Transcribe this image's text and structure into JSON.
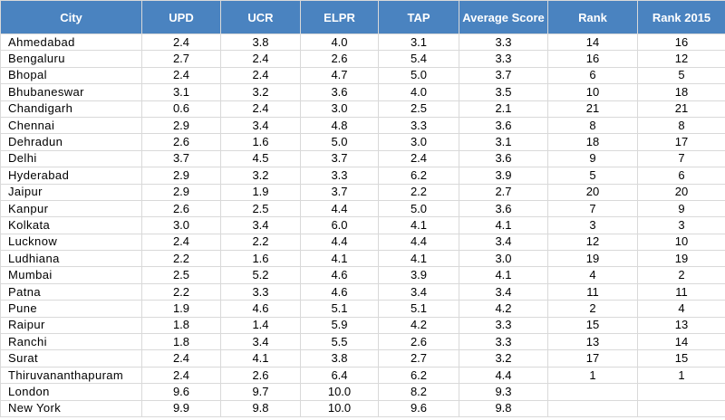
{
  "table": {
    "headers": [
      "City",
      "UPD",
      "UCR",
      "ELPR",
      "TAP",
      "Average Score",
      "Rank",
      "Rank 2015"
    ],
    "rows": [
      [
        "Ahmedabad",
        "2.4",
        "3.8",
        "4.0",
        "3.1",
        "3.3",
        "14",
        "16"
      ],
      [
        "Bengaluru",
        "2.7",
        "2.4",
        "2.6",
        "5.4",
        "3.3",
        "16",
        "12"
      ],
      [
        "Bhopal",
        "2.4",
        "2.4",
        "4.7",
        "5.0",
        "3.7",
        "6",
        "5"
      ],
      [
        "Bhubaneswar",
        "3.1",
        "3.2",
        "3.6",
        "4.0",
        "3.5",
        "10",
        "18"
      ],
      [
        "Chandigarh",
        "0.6",
        "2.4",
        "3.0",
        "2.5",
        "2.1",
        "21",
        "21"
      ],
      [
        "Chennai",
        "2.9",
        "3.4",
        "4.8",
        "3.3",
        "3.6",
        "8",
        "8"
      ],
      [
        "Dehradun",
        "2.6",
        "1.6",
        "5.0",
        "3.0",
        "3.1",
        "18",
        "17"
      ],
      [
        "Delhi",
        "3.7",
        "4.5",
        "3.7",
        "2.4",
        "3.6",
        "9",
        "7"
      ],
      [
        "Hyderabad",
        "2.9",
        "3.2",
        "3.3",
        "6.2",
        "3.9",
        "5",
        "6"
      ],
      [
        "Jaipur",
        "2.9",
        "1.9",
        "3.7",
        "2.2",
        "2.7",
        "20",
        "20"
      ],
      [
        "Kanpur",
        "2.6",
        "2.5",
        "4.4",
        "5.0",
        "3.6",
        "7",
        "9"
      ],
      [
        "Kolkata",
        "3.0",
        "3.4",
        "6.0",
        "4.1",
        "4.1",
        "3",
        "3"
      ],
      [
        "Lucknow",
        "2.4",
        "2.2",
        "4.4",
        "4.4",
        "3.4",
        "12",
        "10"
      ],
      [
        "Ludhiana",
        "2.2",
        "1.6",
        "4.1",
        "4.1",
        "3.0",
        "19",
        "19"
      ],
      [
        "Mumbai",
        "2.5",
        "5.2",
        "4.6",
        "3.9",
        "4.1",
        "4",
        "2"
      ],
      [
        "Patna",
        "2.2",
        "3.3",
        "4.6",
        "3.4",
        "3.4",
        "11",
        "11"
      ],
      [
        "Pune",
        "1.9",
        "4.6",
        "5.1",
        "5.1",
        "4.2",
        "2",
        "4"
      ],
      [
        "Raipur",
        "1.8",
        "1.4",
        "5.9",
        "4.2",
        "3.3",
        "15",
        "13"
      ],
      [
        "Ranchi",
        "1.8",
        "3.4",
        "5.5",
        "2.6",
        "3.3",
        "13",
        "14"
      ],
      [
        "Surat",
        "2.4",
        "4.1",
        "3.8",
        "2.7",
        "3.2",
        "17",
        "15"
      ],
      [
        "Thiruvananthapuram",
        "2.4",
        "2.6",
        "6.4",
        "6.2",
        "4.4",
        "1",
        "1"
      ],
      [
        "London",
        "9.6",
        "9.7",
        "10.0",
        "8.2",
        "9.3",
        "",
        ""
      ],
      [
        "New York",
        "9.9",
        "9.8",
        "10.0",
        "9.6",
        "9.8",
        "",
        ""
      ]
    ]
  }
}
